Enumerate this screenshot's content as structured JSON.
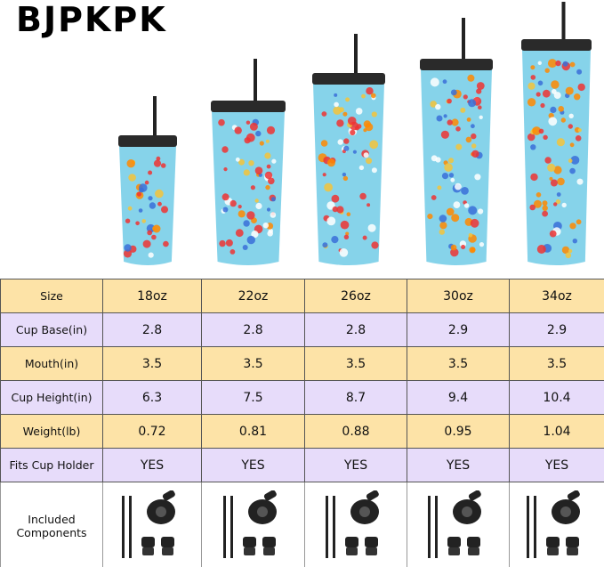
{
  "brand": "BJPKPK",
  "colors": {
    "cup": "#86d3ea",
    "lid": "#2a2a2a",
    "row_yellow": "#fde3a7",
    "row_purple": "#e7dcfa"
  },
  "table": {
    "rows": [
      {
        "label": "Size",
        "values": [
          "18oz",
          "22oz",
          "26oz",
          "30oz",
          "34oz"
        ]
      },
      {
        "label": "Cup Base(in)",
        "values": [
          "2.8",
          "2.8",
          "2.8",
          "2.9",
          "2.9"
        ]
      },
      {
        "label": "Mouth(in)",
        "values": [
          "3.5",
          "3.5",
          "3.5",
          "3.5",
          "3.5"
        ]
      },
      {
        "label": "Cup Height(in)",
        "values": [
          "6.3",
          "7.5",
          "8.7",
          "9.4",
          "10.4"
        ]
      },
      {
        "label": "Weight(lb)",
        "values": [
          "0.72",
          "0.81",
          "0.88",
          "0.95",
          "1.04"
        ]
      },
      {
        "label": "Fits Cup Holder",
        "values": [
          "YES",
          "YES",
          "YES",
          "YES",
          "YES"
        ]
      }
    ],
    "components_label": "Included Components"
  }
}
